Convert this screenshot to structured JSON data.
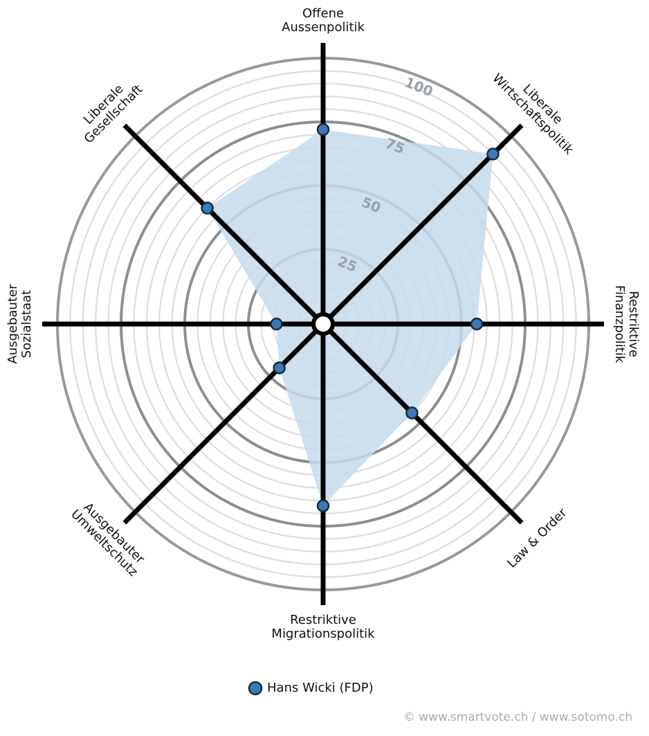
{
  "chart_data": {
    "type": "radar",
    "categories": [
      [
        "Offene",
        "Aussenpolitik"
      ],
      [
        "Liberale",
        "Wirtschaftspolitik"
      ],
      [
        "Restriktive",
        "Finanzpolitik"
      ],
      [
        "Law & Order"
      ],
      [
        "Restriktive",
        "Migrationspolitik"
      ],
      [
        "Ausgebauter",
        "Umweltschutz"
      ],
      [
        "Ausgebauter",
        "Sozialstaat"
      ],
      [
        "Liberale",
        "Gesellschaft"
      ]
    ],
    "series": [
      {
        "name": "Hans Wicki (FDP)",
        "color": "#3a7ab8",
        "fill": "#c5dbeb",
        "values": [
          72,
          90,
          56,
          45,
          67,
          20,
          14,
          60
        ]
      }
    ],
    "rlim": [
      0,
      100
    ],
    "rticks": [
      25,
      50,
      75,
      100
    ],
    "grid": true,
    "legend": "bottom",
    "credit": "© www.smartvote.ch / www.sotomo.ch"
  }
}
